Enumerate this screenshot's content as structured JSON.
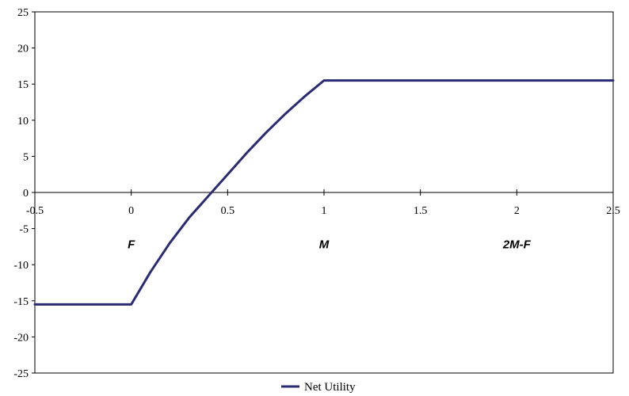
{
  "chart_data": {
    "type": "line",
    "title": "",
    "xlabel": "",
    "ylabel": "",
    "xlim": [
      -0.5,
      2.5
    ],
    "ylim": [
      -25,
      25
    ],
    "x_ticks": [
      -0.5,
      0,
      0.5,
      1,
      1.5,
      2,
      2.5
    ],
    "x_tick_labels": [
      "-0.5",
      "0",
      "0.5",
      "1",
      "1.5",
      "2",
      "2.5"
    ],
    "y_ticks": [
      25,
      20,
      15,
      10,
      5,
      0,
      -5,
      -10,
      -15,
      -20,
      -25
    ],
    "y_tick_labels": [
      "25",
      "20",
      "15",
      "10",
      "5",
      "0",
      "-5",
      "-10",
      "-15",
      "-20",
      "-25"
    ],
    "grid": false,
    "legend_position": "bottom",
    "series": [
      {
        "name": "Net Utility",
        "color": "#2b2b73",
        "x": [
          -0.5,
          0,
          0.1,
          0.2,
          0.3,
          0.4,
          0.5,
          0.6,
          0.7,
          0.8,
          0.9,
          1.0,
          1.5,
          2.0,
          2.5
        ],
        "y": [
          -15.5,
          -15.5,
          -11.0,
          -7.0,
          -3.5,
          -0.5,
          2.5,
          5.5,
          8.3,
          10.9,
          13.3,
          15.5,
          15.5,
          15.5,
          15.5
        ]
      }
    ],
    "annotations": [
      {
        "text": "F",
        "x": 0,
        "y": -7.2
      },
      {
        "text": "M",
        "x": 1,
        "y": -7.2
      },
      {
        "text": "2M-F",
        "x": 2,
        "y": -7.2
      }
    ]
  }
}
